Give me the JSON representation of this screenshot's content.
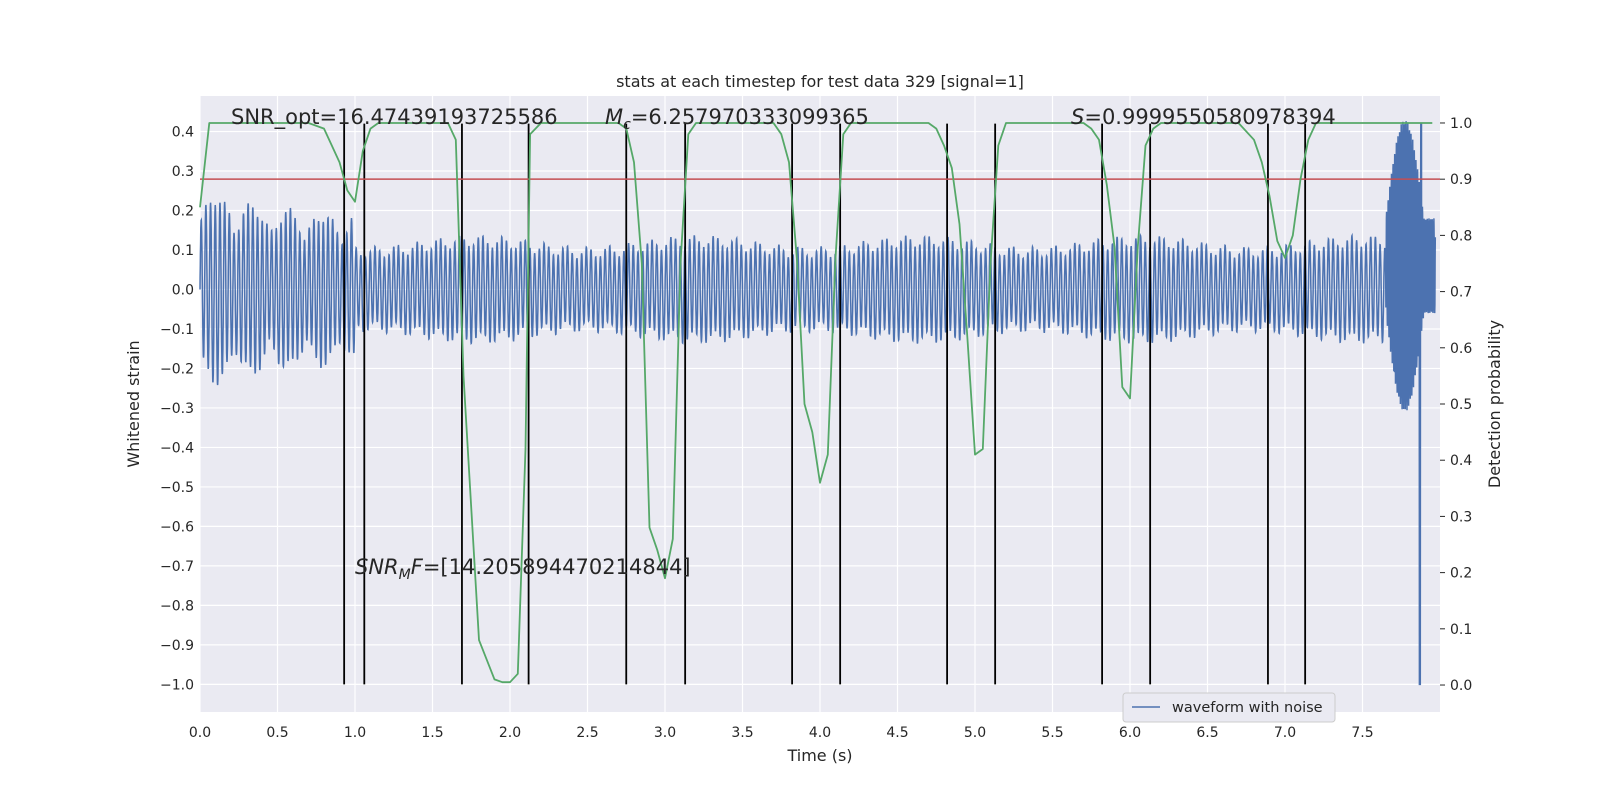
{
  "chart_data": {
    "type": "line",
    "title": "stats at each timestep for test data 329 [signal=1]",
    "xlabel": "Time (s)",
    "ylabel": "Whitened strain",
    "y2label": "Detection probability",
    "xlim": [
      0.0,
      8.0
    ],
    "ylim": [
      -1.07,
      0.49
    ],
    "y2lim": [
      -0.048,
      1.048
    ],
    "xticks": [
      "0.0",
      "0.5",
      "1.0",
      "1.5",
      "2.0",
      "2.5",
      "3.0",
      "3.5",
      "4.0",
      "4.5",
      "5.0",
      "5.5",
      "6.0",
      "6.5",
      "7.0",
      "7.5"
    ],
    "yticks": [
      "0.4",
      "0.3",
      "0.2",
      "0.1",
      "0.0",
      "−0.1",
      "−0.2",
      "−0.3",
      "−0.4",
      "−0.5",
      "−0.6",
      "−0.7",
      "−0.8",
      "−0.9",
      "−1.0"
    ],
    "y2ticks": [
      "1.0",
      "0.9",
      "0.8",
      "0.7",
      "0.6",
      "0.5",
      "0.4",
      "0.3",
      "0.2",
      "0.1",
      "0.0"
    ],
    "annotations": {
      "snr_opt": "SNR_opt=16.47439193725586",
      "mc_symbol": "M",
      "mc_sub": "c",
      "mc_value": "=6.257970333099365",
      "s_symbol": "S",
      "s_value": "=0.9999550580978394",
      "snrmf_symbol": "SNR",
      "snrmf_sub": "M",
      "snrmf_f": "F",
      "snrmf_value": "=[14.205894470214844]"
    },
    "threshold_y2": 0.9,
    "vlines_x": [
      0.93,
      1.06,
      1.69,
      2.12,
      2.75,
      3.13,
      3.82,
      4.13,
      4.82,
      5.13,
      5.82,
      6.13,
      6.89,
      7.13
    ],
    "vlines_y_range": [
      -1.0,
      0.42
    ],
    "series": [
      {
        "name": "waveform with noise",
        "color": "#4c72b0",
        "t_end": 7.97,
        "base_frequency": 33,
        "base_amplitude": 0.12,
        "tail_spike_time": 7.87,
        "tail_spike_min": -1.0,
        "tail_spike_max": 0.42
      },
      {
        "name": "detection probability",
        "color": "#55a868",
        "axis": "y2",
        "x": [
          0.0,
          0.06,
          0.1,
          0.2,
          0.3,
          0.4,
          0.5,
          0.6,
          0.7,
          0.8,
          0.85,
          0.9,
          0.95,
          1.0,
          1.05,
          1.1,
          1.15,
          1.2,
          1.25,
          1.3,
          1.4,
          1.5,
          1.6,
          1.65,
          1.7,
          1.8,
          1.9,
          1.95,
          2.0,
          2.05,
          2.1,
          2.13,
          2.2,
          2.3,
          2.4,
          2.5,
          2.6,
          2.7,
          2.75,
          2.8,
          2.85,
          2.9,
          2.95,
          3.0,
          3.05,
          3.1,
          3.15,
          3.2,
          3.3,
          3.4,
          3.5,
          3.6,
          3.7,
          3.75,
          3.8,
          3.85,
          3.9,
          3.95,
          4.0,
          4.05,
          4.1,
          4.15,
          4.2,
          4.3,
          4.4,
          4.5,
          4.6,
          4.7,
          4.75,
          4.8,
          4.85,
          4.9,
          4.95,
          5.0,
          5.05,
          5.1,
          5.15,
          5.2,
          5.3,
          5.4,
          5.5,
          5.6,
          5.7,
          5.75,
          5.8,
          5.85,
          5.9,
          5.95,
          6.0,
          6.05,
          6.1,
          6.15,
          6.2,
          6.3,
          6.4,
          6.5,
          6.6,
          6.7,
          6.8,
          6.85,
          6.9,
          6.95,
          7.0,
          7.05,
          7.1,
          7.15,
          7.2,
          7.3,
          7.4,
          7.5,
          7.6,
          7.7,
          7.8,
          7.95
        ],
        "values": [
          0.85,
          1.0,
          1.0,
          1.0,
          1.0,
          1.0,
          1.0,
          1.0,
          1.0,
          0.99,
          0.96,
          0.93,
          0.88,
          0.86,
          0.95,
          0.99,
          1.0,
          1.0,
          1.0,
          1.0,
          1.0,
          1.0,
          1.0,
          0.97,
          0.55,
          0.08,
          0.01,
          0.005,
          0.005,
          0.02,
          0.42,
          0.98,
          1.0,
          1.0,
          1.0,
          1.0,
          1.0,
          1.0,
          0.99,
          0.93,
          0.75,
          0.28,
          0.24,
          0.19,
          0.26,
          0.75,
          0.98,
          1.0,
          1.0,
          1.0,
          1.0,
          1.0,
          1.0,
          0.98,
          0.93,
          0.76,
          0.5,
          0.45,
          0.36,
          0.41,
          0.76,
          0.98,
          1.0,
          1.0,
          1.0,
          1.0,
          1.0,
          1.0,
          0.99,
          0.96,
          0.92,
          0.82,
          0.62,
          0.41,
          0.42,
          0.75,
          0.96,
          1.0,
          1.0,
          1.0,
          1.0,
          1.0,
          1.0,
          0.99,
          0.97,
          0.89,
          0.78,
          0.53,
          0.51,
          0.78,
          0.96,
          0.99,
          1.0,
          1.0,
          1.0,
          1.0,
          1.0,
          1.0,
          0.97,
          0.93,
          0.87,
          0.79,
          0.76,
          0.8,
          0.9,
          0.97,
          1.0,
          1.0,
          1.0,
          1.0,
          1.0,
          1.0,
          1.0,
          1.0
        ]
      },
      {
        "name": "threshold",
        "color": "#c44e52",
        "axis": "y2"
      },
      {
        "name": "markers",
        "color": "#000000"
      }
    ],
    "legend": {
      "placement": "lower-right",
      "label": "waveform with noise"
    },
    "grid": true
  }
}
